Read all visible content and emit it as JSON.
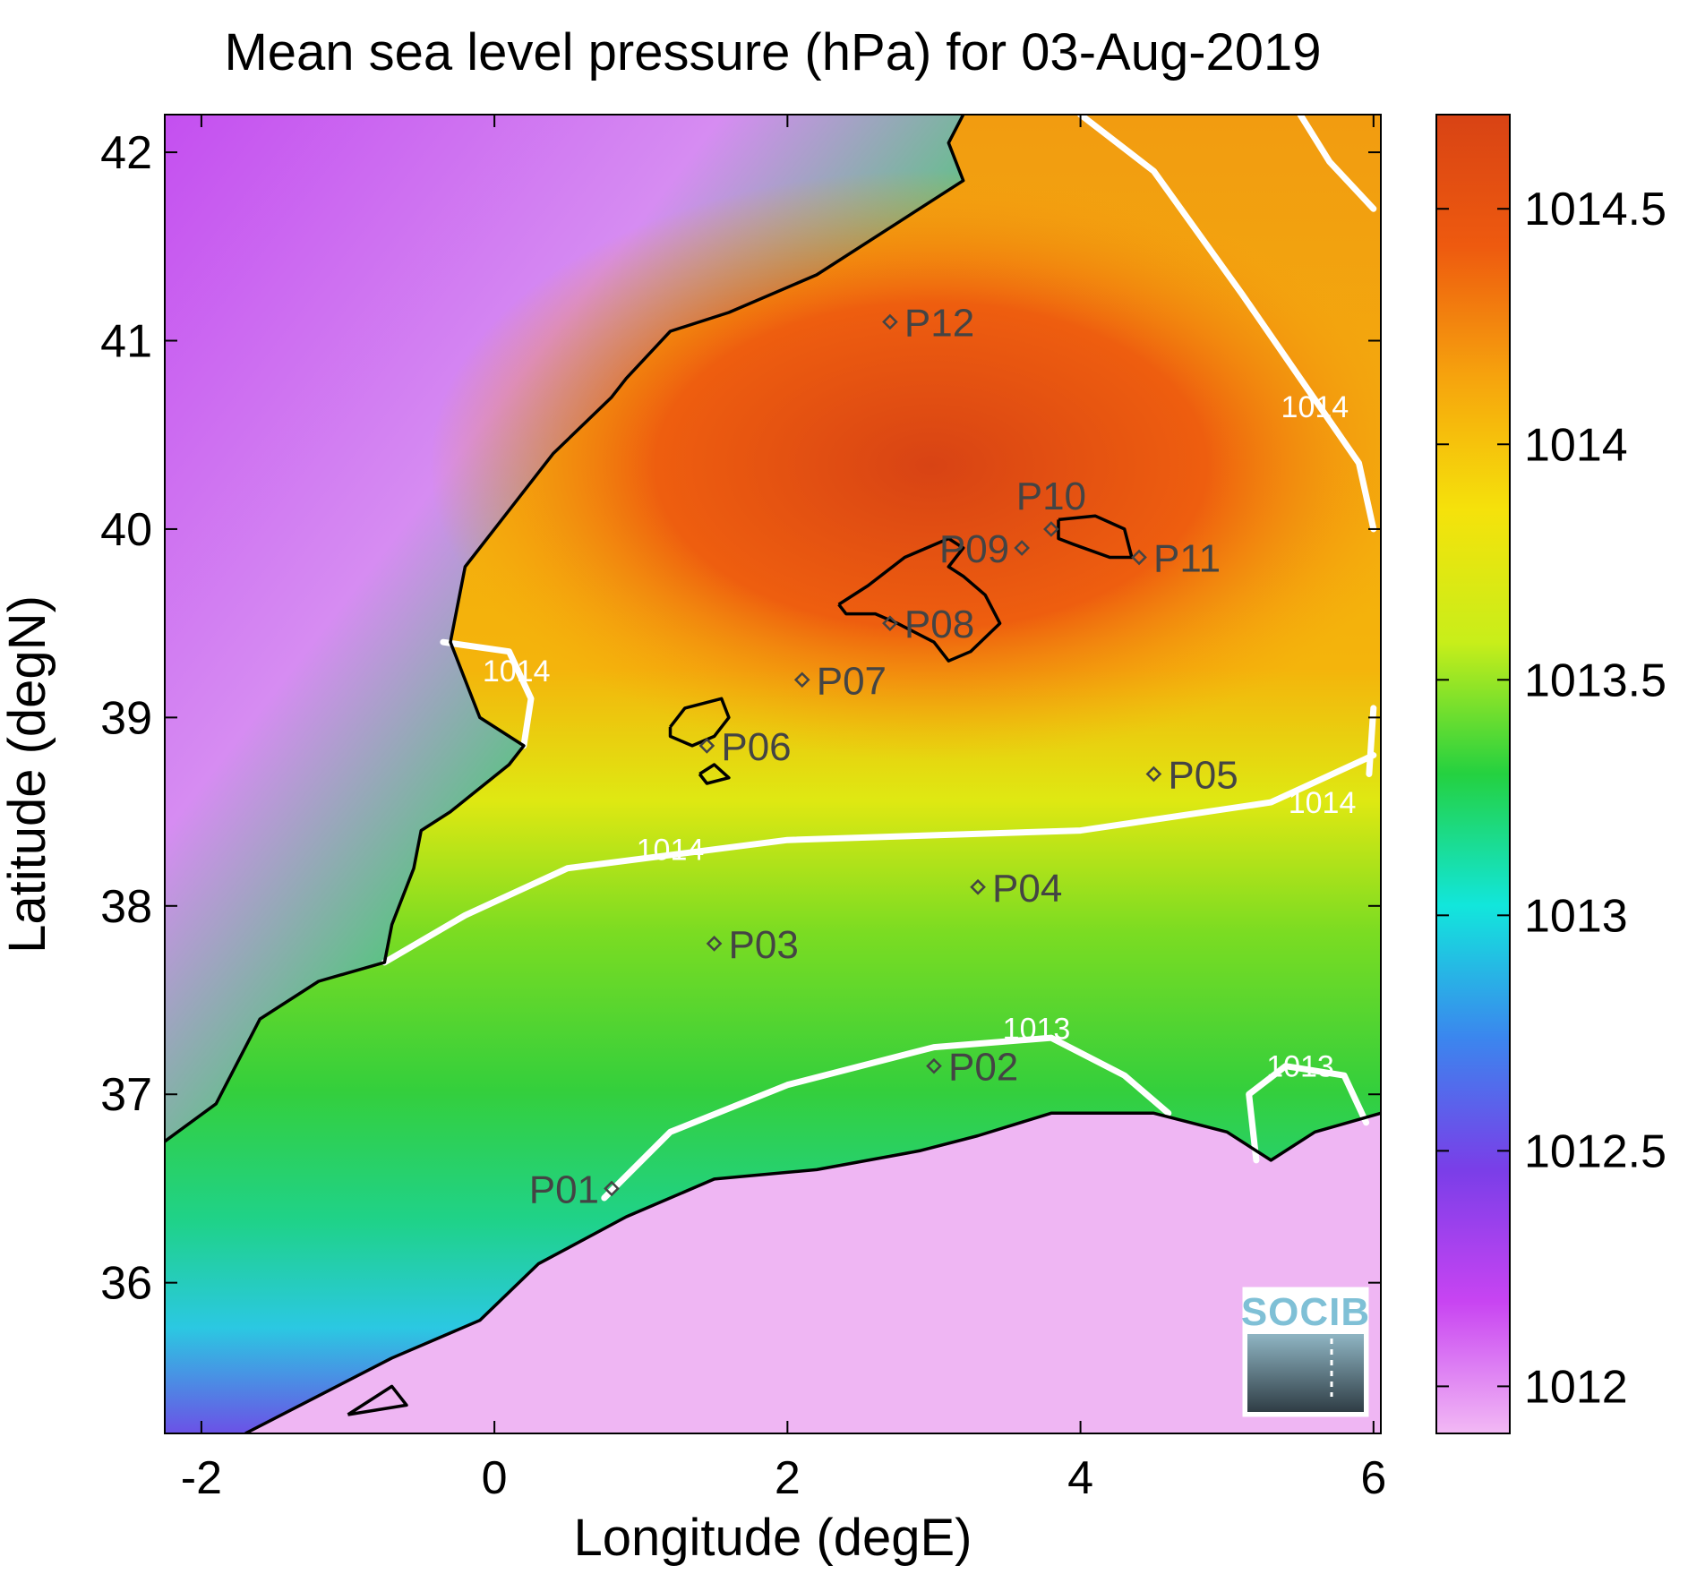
{
  "title": "Mean sea level pressure (hPa) for 03-Aug-2019",
  "x_axis": {
    "label": "Longitude (degE)",
    "range": [
      -2.25,
      6.05
    ],
    "ticks": [
      -2,
      0,
      2,
      4,
      6
    ],
    "tick_labels": [
      "-2",
      "0",
      "2",
      "4",
      "6"
    ]
  },
  "y_axis": {
    "label": "Latitude (degN)",
    "range": [
      35.2,
      42.2
    ],
    "ticks": [
      36,
      37,
      38,
      39,
      40,
      41,
      42
    ],
    "tick_labels": [
      "36",
      "37",
      "38",
      "39",
      "40",
      "41",
      "42"
    ]
  },
  "colorbar": {
    "range": [
      1011.9,
      1014.7
    ],
    "ticks": [
      1012,
      1012.5,
      1013,
      1013.5,
      1014,
      1014.5
    ],
    "tick_labels": [
      "1012",
      "1012.5",
      "1013",
      "1013.5",
      "1014",
      "1014.5"
    ],
    "colors": [
      "#f2b9f4",
      "#c844f2",
      "#7a3ee8",
      "#3b86ee",
      "#12e6dc",
      "#24d140",
      "#c8ee1a",
      "#f5e20b",
      "#f6a40d",
      "#ee5a0f",
      "#d84314"
    ]
  },
  "stations": [
    {
      "name": "P01",
      "lon": 0.8,
      "lat": 36.5,
      "label_side": "left"
    },
    {
      "name": "P02",
      "lon": 3.0,
      "lat": 37.15,
      "label_side": "right"
    },
    {
      "name": "P03",
      "lon": 1.5,
      "lat": 37.8,
      "label_side": "right"
    },
    {
      "name": "P04",
      "lon": 3.3,
      "lat": 38.1,
      "label_side": "right"
    },
    {
      "name": "P05",
      "lon": 4.5,
      "lat": 38.7,
      "label_side": "right"
    },
    {
      "name": "P06",
      "lon": 1.45,
      "lat": 38.85,
      "label_side": "right"
    },
    {
      "name": "P07",
      "lon": 2.1,
      "lat": 39.2,
      "label_side": "right"
    },
    {
      "name": "P08",
      "lon": 2.7,
      "lat": 39.5,
      "label_side": "right"
    },
    {
      "name": "P09",
      "lon": 3.6,
      "lat": 39.9,
      "label_side": "left"
    },
    {
      "name": "P10",
      "lon": 3.8,
      "lat": 40.0,
      "label_side": "above"
    },
    {
      "name": "P11",
      "lon": 4.4,
      "lat": 39.85,
      "label_side": "right"
    },
    {
      "name": "P12",
      "lon": 2.7,
      "lat": 41.1,
      "label_side": "right"
    }
  ],
  "contours": [
    {
      "level": "1014",
      "points": [
        [
          -0.75,
          37.7
        ],
        [
          -0.2,
          37.95
        ],
        [
          0.5,
          38.2
        ],
        [
          2.0,
          38.35
        ],
        [
          4.0,
          38.4
        ],
        [
          5.3,
          38.55
        ],
        [
          6.0,
          38.8
        ]
      ],
      "label_at": [
        1.2,
        38.3
      ]
    },
    {
      "level": "1014",
      "points": [
        [
          -0.35,
          39.4
        ],
        [
          0.1,
          39.35
        ],
        [
          0.25,
          39.1
        ],
        [
          0.2,
          38.85
        ]
      ],
      "label_at": [
        0.15,
        39.25
      ]
    },
    {
      "level": "1014",
      "points": [
        [
          4.0,
          42.2
        ],
        [
          4.5,
          41.9
        ],
        [
          5.1,
          41.25
        ],
        [
          5.5,
          40.8
        ],
        [
          5.9,
          40.35
        ],
        [
          6.0,
          40.0
        ]
      ],
      "label_at": [
        5.6,
        40.65
      ]
    },
    {
      "level": "1014",
      "points": [
        [
          5.5,
          42.2
        ],
        [
          5.7,
          41.95
        ],
        [
          6.0,
          41.7
        ]
      ],
      "label_at": null
    },
    {
      "level": "1014",
      "points": [
        [
          6.0,
          39.05
        ],
        [
          5.97,
          38.7
        ]
      ],
      "label_at": [
        5.65,
        38.55
      ]
    },
    {
      "level": "1013",
      "points": [
        [
          0.75,
          36.45
        ],
        [
          1.2,
          36.8
        ],
        [
          2.0,
          37.05
        ],
        [
          3.0,
          37.25
        ],
        [
          3.8,
          37.3
        ],
        [
          4.3,
          37.1
        ],
        [
          4.6,
          36.9
        ]
      ],
      "label_at": [
        3.7,
        37.35
      ]
    },
    {
      "level": "1013",
      "points": [
        [
          5.2,
          36.65
        ],
        [
          5.15,
          37.0
        ],
        [
          5.4,
          37.15
        ],
        [
          5.8,
          37.1
        ],
        [
          5.95,
          36.85
        ]
      ],
      "label_at": [
        5.5,
        37.15
      ]
    }
  ],
  "coastlines": [
    {
      "name": "iberia",
      "points": [
        [
          -2.25,
          36.75
        ],
        [
          -1.9,
          36.95
        ],
        [
          -1.6,
          37.4
        ],
        [
          -1.2,
          37.6
        ],
        [
          -0.75,
          37.7
        ],
        [
          -0.7,
          37.9
        ],
        [
          -0.55,
          38.2
        ],
        [
          -0.5,
          38.4
        ],
        [
          -0.3,
          38.5
        ],
        [
          0.1,
          38.75
        ],
        [
          0.2,
          38.85
        ],
        [
          -0.1,
          39.0
        ],
        [
          -0.3,
          39.4
        ],
        [
          -0.2,
          39.8
        ],
        [
          0.1,
          40.1
        ],
        [
          0.4,
          40.4
        ],
        [
          0.8,
          40.7
        ],
        [
          0.9,
          40.8
        ],
        [
          1.2,
          41.05
        ],
        [
          1.6,
          41.15
        ],
        [
          2.2,
          41.35
        ],
        [
          2.7,
          41.6
        ],
        [
          3.2,
          41.85
        ],
        [
          3.1,
          42.05
        ],
        [
          3.2,
          42.2
        ]
      ]
    },
    {
      "name": "africa",
      "points": [
        [
          -1.7,
          35.2
        ],
        [
          -1.2,
          35.4
        ],
        [
          -0.7,
          35.6
        ],
        [
          -0.1,
          35.8
        ],
        [
          0.3,
          36.1
        ],
        [
          0.9,
          36.35
        ],
        [
          1.5,
          36.55
        ],
        [
          2.2,
          36.6
        ],
        [
          2.9,
          36.7
        ],
        [
          3.3,
          36.78
        ],
        [
          3.8,
          36.9
        ],
        [
          4.5,
          36.9
        ],
        [
          5.0,
          36.8
        ],
        [
          5.3,
          36.65
        ],
        [
          5.6,
          36.8
        ],
        [
          6.05,
          36.9
        ]
      ]
    },
    {
      "name": "mallorca",
      "points": [
        [
          2.35,
          39.6
        ],
        [
          2.55,
          39.7
        ],
        [
          2.8,
          39.85
        ],
        [
          3.1,
          39.95
        ],
        [
          3.2,
          39.9
        ],
        [
          3.1,
          39.8
        ],
        [
          3.2,
          39.75
        ],
        [
          3.35,
          39.65
        ],
        [
          3.45,
          39.5
        ],
        [
          3.25,
          39.35
        ],
        [
          3.1,
          39.3
        ],
        [
          3.0,
          39.4
        ],
        [
          2.75,
          39.5
        ],
        [
          2.6,
          39.55
        ],
        [
          2.4,
          39.55
        ],
        [
          2.35,
          39.6
        ]
      ]
    },
    {
      "name": "menorca",
      "points": [
        [
          3.85,
          40.05
        ],
        [
          4.1,
          40.07
        ],
        [
          4.3,
          40.0
        ],
        [
          4.35,
          39.85
        ],
        [
          4.2,
          39.85
        ],
        [
          3.95,
          39.92
        ],
        [
          3.85,
          39.95
        ],
        [
          3.85,
          40.05
        ]
      ]
    },
    {
      "name": "ibiza",
      "points": [
        [
          1.2,
          38.95
        ],
        [
          1.3,
          39.05
        ],
        [
          1.55,
          39.1
        ],
        [
          1.6,
          39.0
        ],
        [
          1.5,
          38.9
        ],
        [
          1.35,
          38.85
        ],
        [
          1.2,
          38.9
        ],
        [
          1.2,
          38.95
        ]
      ]
    },
    {
      "name": "formentera",
      "points": [
        [
          1.4,
          38.7
        ],
        [
          1.5,
          38.75
        ],
        [
          1.6,
          38.68
        ],
        [
          1.45,
          38.65
        ],
        [
          1.4,
          38.7
        ]
      ]
    },
    {
      "name": "alboran",
      "points": [
        [
          -1.0,
          35.3
        ],
        [
          -0.6,
          35.35
        ],
        [
          -0.7,
          35.45
        ],
        [
          -1.0,
          35.3
        ]
      ]
    }
  ],
  "logo": {
    "text": "SOCIB"
  }
}
